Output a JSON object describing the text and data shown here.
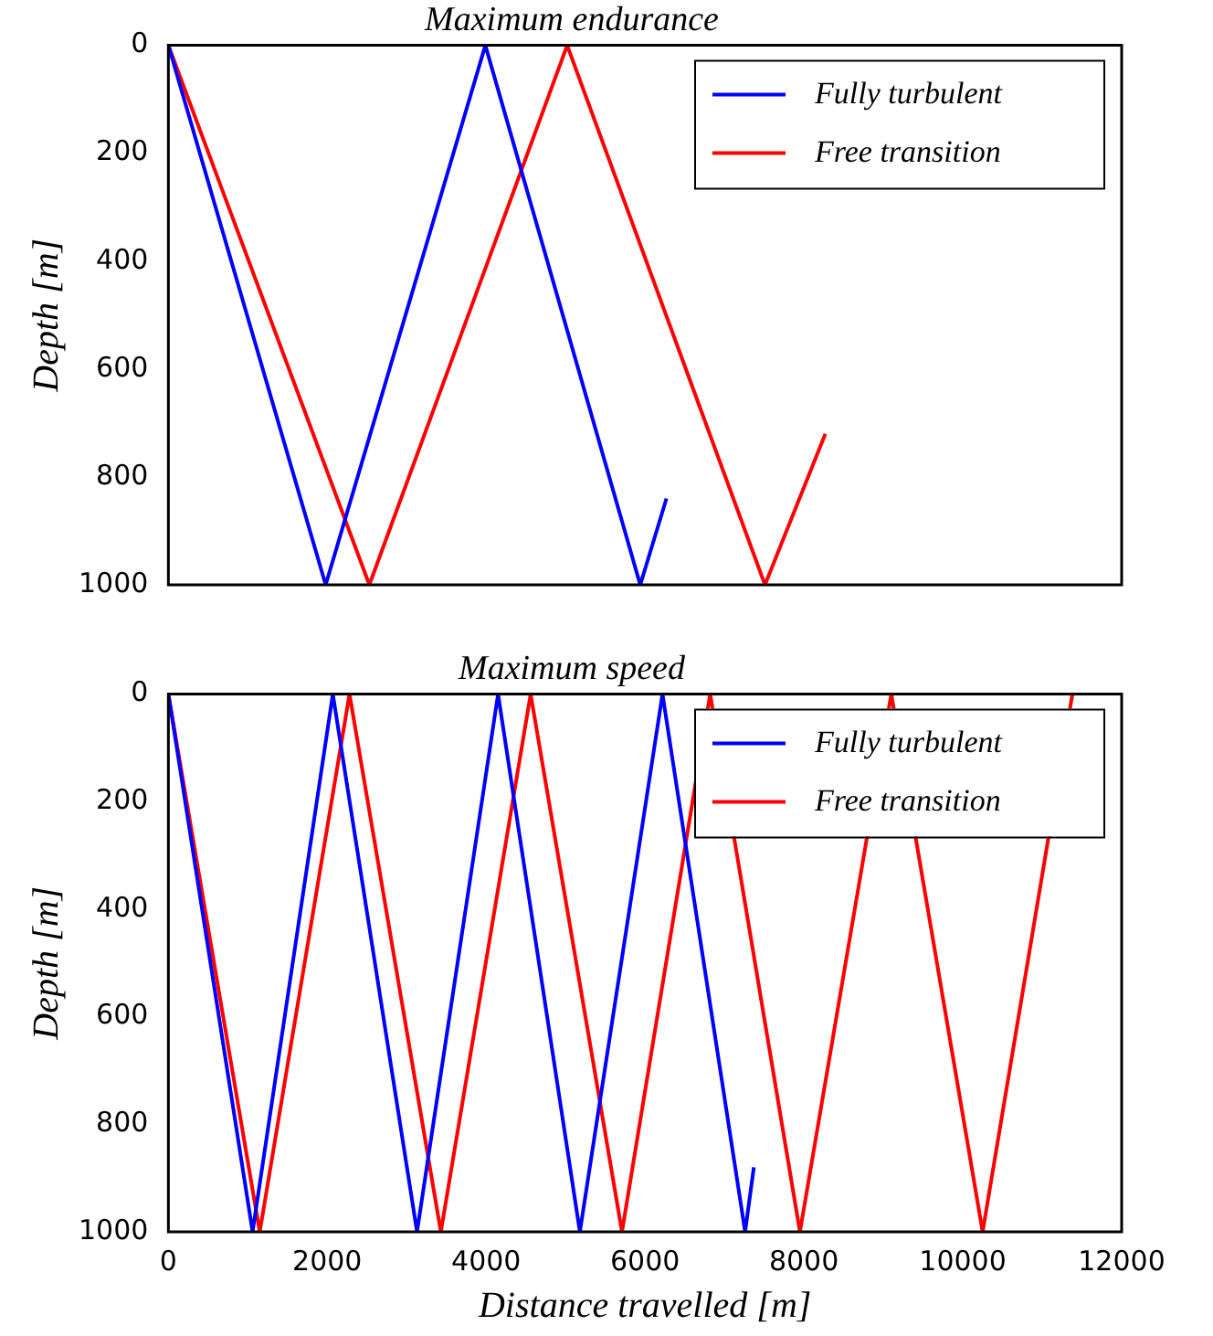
{
  "chart_data": [
    {
      "type": "line",
      "title": "Maximum endurance",
      "ylabel": "Depth [m]",
      "series": [
        {
          "name": "Fully turbulent",
          "color": "#0000ff",
          "x": [
            0,
            1980,
            3990,
            5940,
            6270
          ],
          "values": [
            0,
            1000,
            0,
            1000,
            840
          ]
        },
        {
          "name": "Free transition",
          "color": "#ff0000",
          "x": [
            0,
            2530,
            5020,
            7510,
            8270
          ],
          "values": [
            0,
            1000,
            0,
            1000,
            720
          ]
        }
      ],
      "xlim": [
        0,
        12000
      ],
      "xticks": [
        0,
        2000,
        4000,
        6000,
        8000,
        10000,
        12000
      ],
      "ylim": [
        1000,
        0
      ],
      "yticks": [
        0,
        200,
        400,
        600,
        800,
        1000
      ],
      "tick_labels": "y",
      "grid": false,
      "legend": "top right",
      "marker": "none",
      "line_style": "solid"
    },
    {
      "type": "line",
      "title": "Maximum speed",
      "xlabel": "Distance travelled [m]",
      "ylabel": "Depth [m]",
      "series": [
        {
          "name": "Fully turbulent",
          "color": "#0000ff",
          "x": [
            0,
            1060,
            2070,
            3130,
            4150,
            5180,
            6220,
            7260,
            7370
          ],
          "values": [
            0,
            1000,
            0,
            1000,
            0,
            1000,
            0,
            1000,
            880
          ]
        },
        {
          "name": "Free transition",
          "color": "#ff0000",
          "x": [
            0,
            1150,
            2280,
            3430,
            4560,
            5710,
            6820,
            7950,
            9100,
            10250,
            11380
          ],
          "values": [
            0,
            1000,
            0,
            1000,
            0,
            1000,
            0,
            1000,
            0,
            1000,
            0
          ]
        }
      ],
      "xlim": [
        0,
        12000
      ],
      "xticks": [
        0,
        2000,
        4000,
        6000,
        8000,
        10000,
        12000
      ],
      "ylim": [
        1000,
        0
      ],
      "yticks": [
        0,
        200,
        400,
        600,
        800,
        1000
      ],
      "grid": false,
      "legend": "top right",
      "marker": "none",
      "line_style": "solid"
    }
  ]
}
